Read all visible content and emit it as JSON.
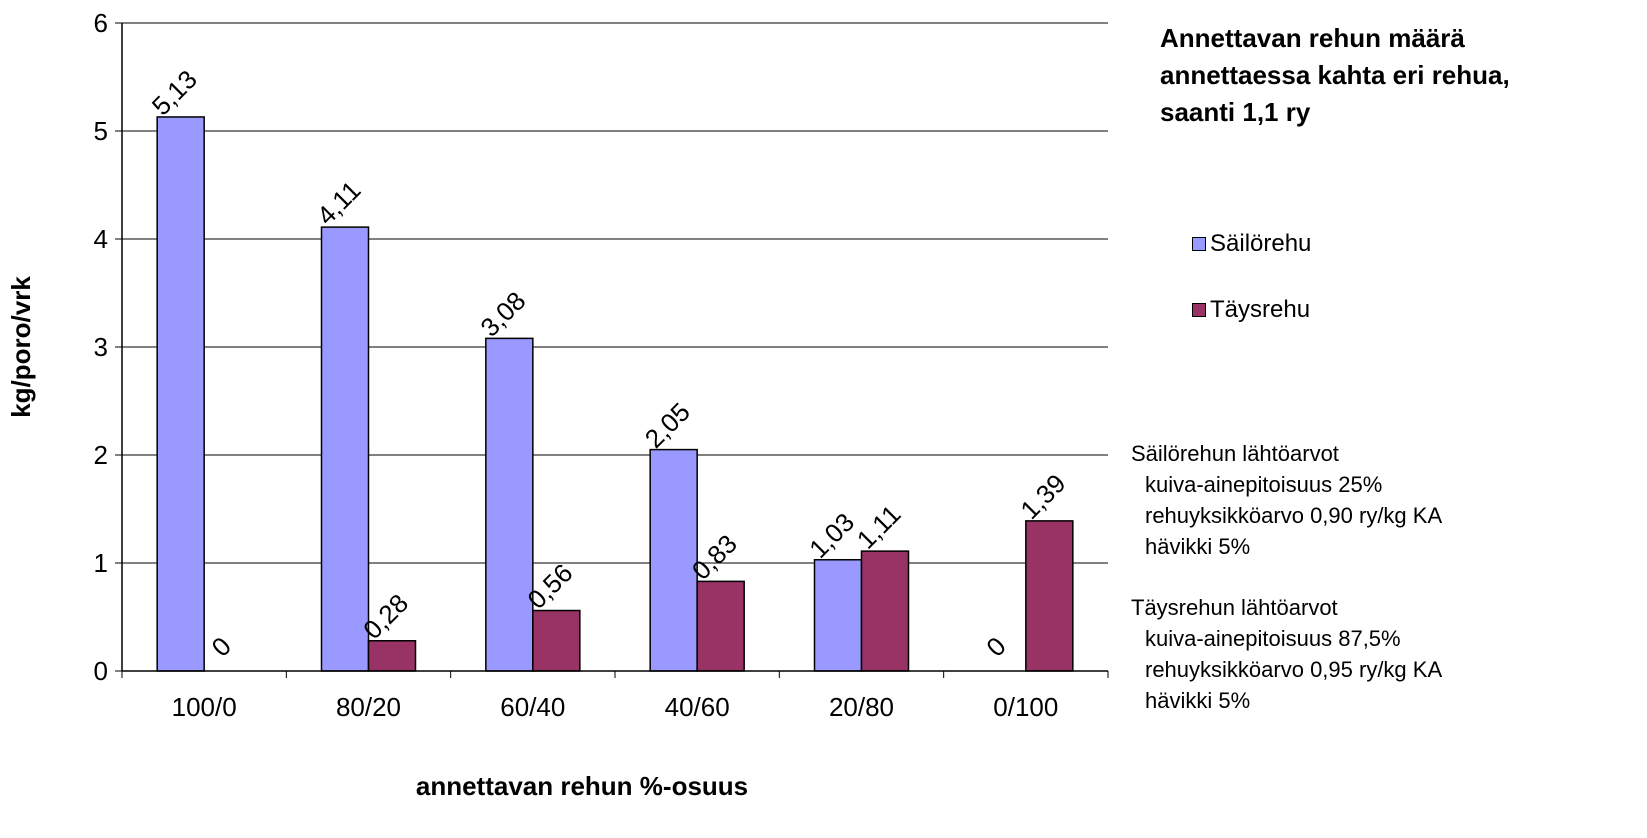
{
  "chart_data": {
    "type": "bar",
    "title": "Annettavan rehun määrä annettaessa kahta eri rehua, saanti 1,1 ry",
    "title_lines": [
      "Annettavan rehun määrä",
      "annettaessa kahta eri rehua,",
      "saanti 1,1 ry"
    ],
    "xlabel": "annettavan rehun %-osuus",
    "ylabel": "kg/poro/vrk",
    "categories": [
      "100/0",
      "80/20",
      "60/40",
      "40/60",
      "20/80",
      "0/100"
    ],
    "ylim": [
      0,
      6
    ],
    "yticks": [
      "0",
      "1",
      "2",
      "3",
      "4",
      "5",
      "6"
    ],
    "grid": true,
    "legend_position": "right",
    "series": [
      {
        "name": "Säilörehu",
        "color": "#9999ff",
        "values": [
          5.13,
          4.11,
          3.08,
          2.05,
          1.03,
          0
        ],
        "labels": [
          "5,13",
          "4,11",
          "3,08",
          "2,05",
          "1,03",
          "0"
        ]
      },
      {
        "name": "Täysrehu",
        "color": "#993366",
        "values": [
          0,
          0.28,
          0.56,
          0.83,
          1.11,
          1.39
        ],
        "labels": [
          "0",
          "0,28",
          "0,56",
          "0,83",
          "1,11",
          "1,39"
        ]
      }
    ]
  },
  "notes": [
    {
      "heading": "Säilörehun lähtöarvot",
      "lines": [
        "kuiva-ainepitoisuus 25%",
        "rehuyksikköarvo 0,90 ry/kg KA",
        "hävikki 5%"
      ]
    },
    {
      "heading": "Täysrehun lähtöarvot",
      "lines": [
        "kuiva-ainepitoisuus 87,5%",
        "rehuyksikköarvo 0,95 ry/kg KA",
        "hävikki 5%"
      ]
    }
  ]
}
